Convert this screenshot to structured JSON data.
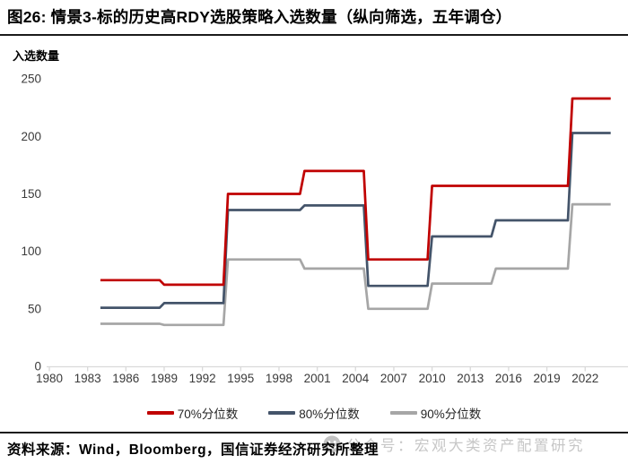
{
  "figure": {
    "title": "图26: 情景3-标的历史高RDY选股策略入选数量（纵向筛选，五年调仓）",
    "y_axis_label": "入选数量",
    "source_text": "资料来源：Wind，Bloomberg，国信证券经济研究所整理",
    "watermark_text": "公众号：宏观大类资产配置研究"
  },
  "colors": {
    "series_70": "#c00000",
    "series_80": "#44546a",
    "series_90": "#a6a6a6",
    "axis_line": "#d9d9d9",
    "tick_text": "#3a3a3a",
    "divider": "#1a1a1a",
    "watermark": "#c7c7c7"
  },
  "chart_data": {
    "type": "line",
    "style": "step-annual",
    "title": "情景3-标的历史高RDY选股策略入选数量（纵向筛选，五年调仓）",
    "xlabel": "",
    "ylabel": "入选数量",
    "xlim": [
      1980,
      2025.5
    ],
    "ylim": [
      0,
      250
    ],
    "x_ticks": [
      1980,
      1983,
      1986,
      1989,
      1992,
      1995,
      1998,
      2001,
      2004,
      2007,
      2010,
      2013,
      2016,
      2019,
      2022
    ],
    "y_ticks": [
      0,
      50,
      100,
      150,
      200,
      250
    ],
    "grid": false,
    "legend_position": "bottom",
    "start_year": 1984,
    "end_year": 2024,
    "note": "breakpoints = [year, value] where value holds from that year until the next breakpoint",
    "series": [
      {
        "name": "70%分位数",
        "color": "#c00000",
        "breakpoints": [
          [
            1984,
            75
          ],
          [
            1989,
            71
          ],
          [
            1994,
            150
          ],
          [
            2000,
            170
          ],
          [
            2005,
            93
          ],
          [
            2010,
            157
          ],
          [
            2021,
            233
          ]
        ]
      },
      {
        "name": "80%分位数",
        "color": "#44546a",
        "breakpoints": [
          [
            1984,
            51
          ],
          [
            1989,
            55
          ],
          [
            1994,
            136
          ],
          [
            2000,
            140
          ],
          [
            2005,
            70
          ],
          [
            2010,
            113
          ],
          [
            2015,
            127
          ],
          [
            2021,
            203
          ]
        ]
      },
      {
        "name": "90%分位数",
        "color": "#a6a6a6",
        "breakpoints": [
          [
            1984,
            37
          ],
          [
            1989,
            36
          ],
          [
            1994,
            93
          ],
          [
            2000,
            85
          ],
          [
            2005,
            50
          ],
          [
            2010,
            72
          ],
          [
            2015,
            85
          ],
          [
            2021,
            141
          ]
        ]
      }
    ]
  }
}
